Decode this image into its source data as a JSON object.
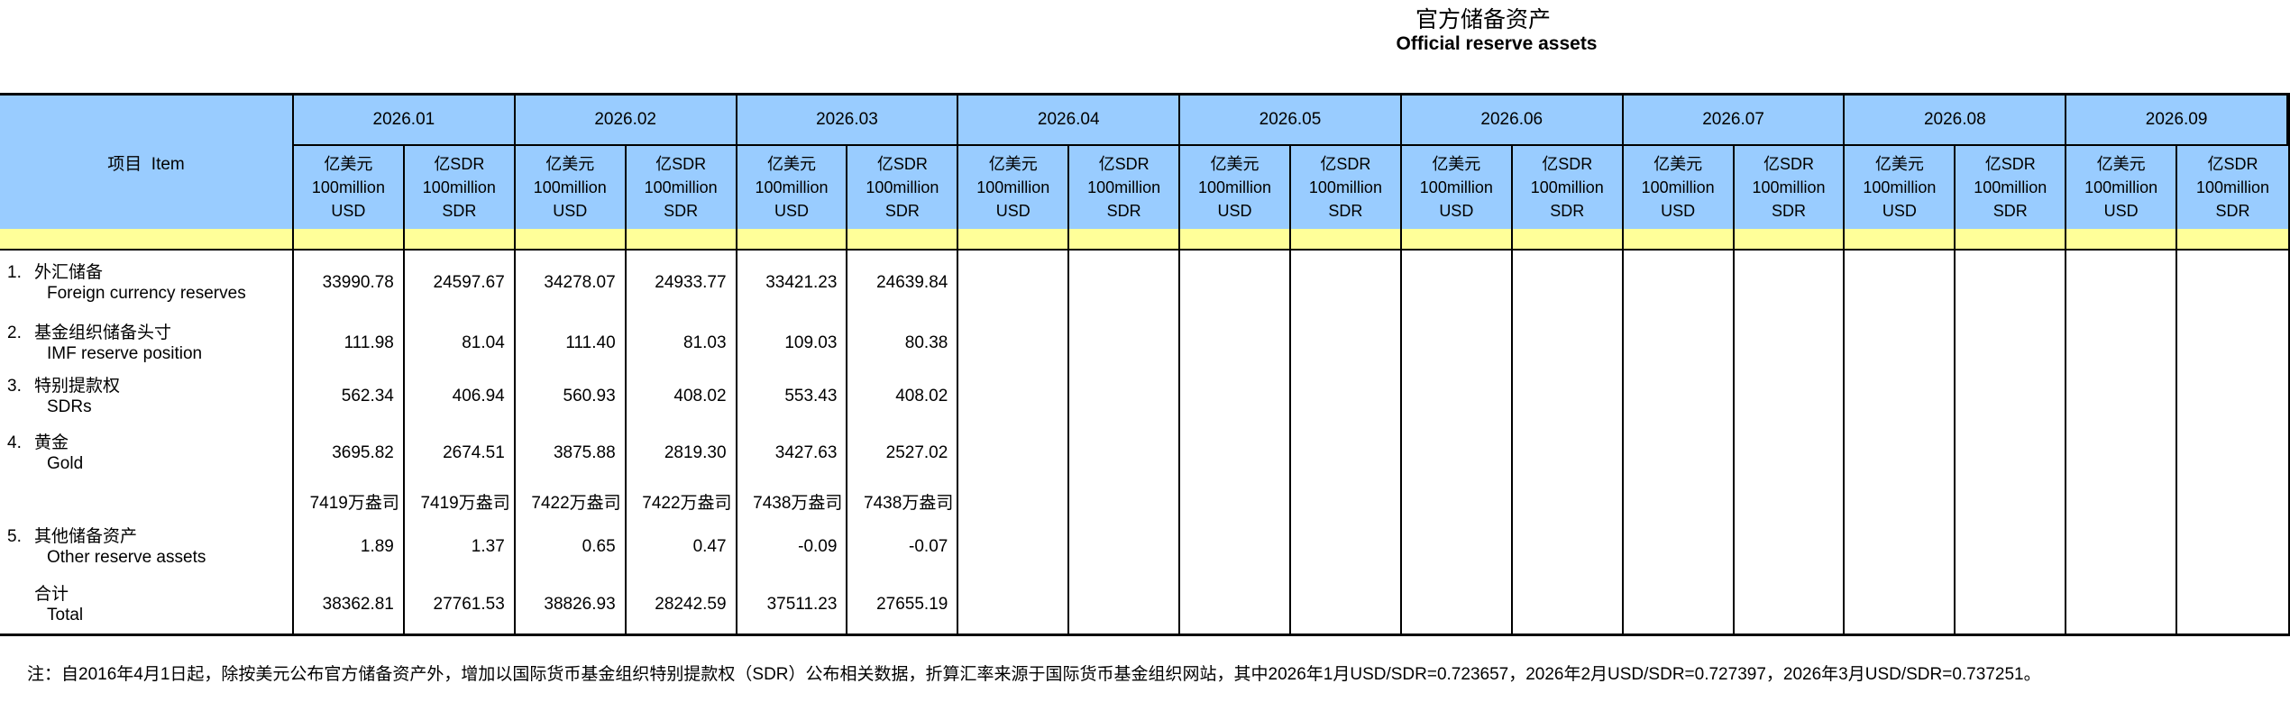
{
  "title": {
    "zh": "官方储备资产",
    "en": "Official reserve assets"
  },
  "table": {
    "item_header": "项目  Item",
    "months": [
      "2026.01",
      "2026.02",
      "2026.03",
      "2026.04",
      "2026.05",
      "2026.06",
      "2026.07",
      "2026.08",
      "2026.09"
    ],
    "unit_usd": "亿美元\n100million\nUSD",
    "unit_sdr": "亿SDR\n100million\nSDR",
    "rows": [
      {
        "num": "1.",
        "zh": "外汇储备",
        "en": "Foreign currency reserves",
        "values": [
          "33990.78",
          "24597.67",
          "34278.07",
          "24933.77",
          "33421.23",
          "24639.84",
          "",
          "",
          "",
          "",
          "",
          "",
          "",
          "",
          "",
          "",
          "",
          ""
        ]
      },
      {
        "num": "2.",
        "zh": "基金组织储备头寸",
        "en": "IMF reserve position",
        "values": [
          "111.98",
          "81.04",
          "111.40",
          "81.03",
          "109.03",
          "80.38",
          "",
          "",
          "",
          "",
          "",
          "",
          "",
          "",
          "",
          "",
          "",
          ""
        ]
      },
      {
        "num": "3.",
        "zh": "特别提款权",
        "en": "SDRs",
        "values": [
          "562.34",
          "406.94",
          "560.93",
          "408.02",
          "553.43",
          "408.02",
          "",
          "",
          "",
          "",
          "",
          "",
          "",
          "",
          "",
          "",
          "",
          ""
        ]
      },
      {
        "num": "4.",
        "zh": "黄金",
        "en": "Gold",
        "values": [
          "3695.82",
          "2674.51",
          "3875.88",
          "2819.30",
          "3427.63",
          "2527.02",
          "",
          "",
          "",
          "",
          "",
          "",
          "",
          "",
          "",
          "",
          "",
          ""
        ]
      },
      {
        "num": "",
        "zh": "",
        "en": "",
        "ounces": true,
        "values": [
          "7419万盎司",
          "7419万盎司",
          "7422万盎司",
          "7422万盎司",
          "7438万盎司",
          "7438万盎司",
          "",
          "",
          "",
          "",
          "",
          "",
          "",
          "",
          "",
          "",
          "",
          ""
        ]
      },
      {
        "num": "5.",
        "zh": "其他储备资产",
        "en": "Other reserve assets",
        "values": [
          "1.89",
          "1.37",
          "0.65",
          "0.47",
          "-0.09",
          "-0.07",
          "",
          "",
          "",
          "",
          "",
          "",
          "",
          "",
          "",
          "",
          "",
          ""
        ]
      },
      {
        "num": "",
        "zh": "合计",
        "en": "Total",
        "total": true,
        "values": [
          "38362.81",
          "27761.53",
          "38826.93",
          "28242.59",
          "37511.23",
          "27655.19",
          "",
          "",
          "",
          "",
          "",
          "",
          "",
          "",
          "",
          "",
          "",
          ""
        ]
      }
    ]
  },
  "footnote": "注：自2016年4月1日起，除按美元公布官方储备资产外，增加以国际货币基金组织特别提款权（SDR）公布相关数据，折算汇率来源于国际货币基金组织网站，其中2026年1月USD/SDR=0.723657，2026年2月USD/SDR=0.727397，2026年3月USD/SDR=0.737251。",
  "colors": {
    "header_blue": "#99CCFF",
    "band_yellow": "#FFFF99"
  }
}
